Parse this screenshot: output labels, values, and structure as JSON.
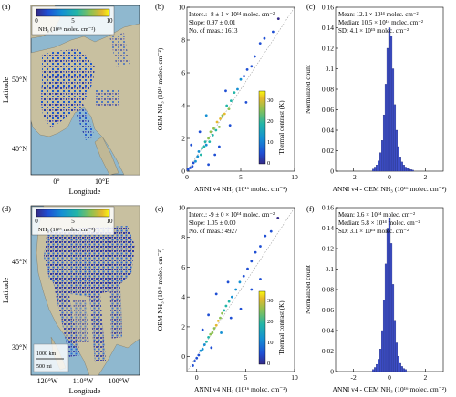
{
  "rows": [
    {
      "map": {
        "label": "(a)",
        "ylabel": "Latitude",
        "xlabel": "Longitude",
        "yticks": [
          "50°N",
          "40°N"
        ],
        "xticks": [
          "0°",
          "10°E"
        ],
        "colorbar_ticks": [
          "0",
          "5",
          "10"
        ],
        "colorbar_label": "NH₃ (10¹⁶ molec. cm⁻²)",
        "scalebar": []
      },
      "scatter": {
        "label": "(b)",
        "annotations": [
          "Interc.: -8 ± 1 × 10¹⁴ molec. cm⁻²",
          "Slope: 0.97 ± 0.01",
          "No. of meas.: 1613"
        ],
        "xlabel": "ANNI v4 NH₃ (10¹⁶ molec. cm⁻²)",
        "ylabel": "OEM NH₃ (10¹⁶ molec. cm⁻²)",
        "colorbar_label": "Thermal contrast (K)",
        "colorbar_ticks": [
          "0",
          "10",
          "20",
          "30"
        ]
      },
      "hist": {
        "label": "(c)",
        "annotations": [
          "Mean:  12.1 × 10¹⁴ molec. cm⁻²",
          "Median:  10.5 × 10¹⁴ molec. cm⁻²",
          "SD:  4.1 × 10¹⁵ molec. cm⁻²"
        ],
        "xlabel": "ANNI v4 - OEM NH₃ (10¹⁶ molec. cm⁻²)",
        "ylabel": "Normalized count"
      }
    },
    {
      "map": {
        "label": "(d)",
        "ylabel": "Latitude",
        "xlabel": "Longitude",
        "yticks": [
          "45°N",
          "30°N"
        ],
        "xticks": [
          "120°W",
          "110°W",
          "100°W"
        ],
        "colorbar_ticks": [
          "0",
          "5",
          "10"
        ],
        "colorbar_label": "NH₃ (10¹⁶ molec. cm⁻²)",
        "scalebar": [
          "1000 km",
          "500 mi"
        ]
      },
      "scatter": {
        "label": "(e)",
        "annotations": [
          "Interc.: -9 ± 0 × 10¹⁴ molec. cm⁻²",
          "Slope: 1.05 ± 0.00",
          "No. of meas.: 4927"
        ],
        "xlabel": "ANNI v4 NH₃ (10¹⁶ molec. cm⁻²)",
        "ylabel": "OEM NH₃ (10¹⁶ molec. cm⁻²)",
        "colorbar_label": "Thermal contrast (K)",
        "colorbar_ticks": [
          "0",
          "10",
          "20",
          "30"
        ]
      },
      "hist": {
        "label": "(f)",
        "annotations": [
          "Mean:  3.6 × 10¹⁴ molec. cm⁻²",
          "Median:  5.8 × 10¹⁴ molec. cm⁻²",
          "SD:  3.1 × 10¹⁵ molec. cm⁻²"
        ],
        "xlabel": "ANNI v4 - OEM NH₃ (10¹⁶ molec. cm⁻²)",
        "ylabel": "Normalized count"
      }
    }
  ],
  "chart_data": [
    {
      "panel": "(b)",
      "type": "scatter",
      "xlim": [
        0,
        10
      ],
      "ylim": [
        0,
        10
      ],
      "xticks": [
        0,
        5,
        10
      ],
      "yticks": [
        0,
        2,
        4,
        6,
        8,
        10
      ],
      "colorbar_range": [
        0,
        35
      ],
      "one_to_one_line": true,
      "grid": false,
      "points_approx": [
        [
          0.1,
          0.1,
          3
        ],
        [
          0.3,
          0.2,
          5
        ],
        [
          0.5,
          0.3,
          6
        ],
        [
          0.6,
          0.5,
          8
        ],
        [
          0.8,
          0.6,
          10
        ],
        [
          1.0,
          0.9,
          12
        ],
        [
          1.1,
          1.2,
          14
        ],
        [
          1.3,
          1.0,
          15
        ],
        [
          1.4,
          1.4,
          17
        ],
        [
          1.6,
          1.5,
          18
        ],
        [
          1.7,
          1.8,
          20
        ],
        [
          1.8,
          1.6,
          12
        ],
        [
          2.0,
          2.0,
          22
        ],
        [
          2.1,
          1.8,
          16
        ],
        [
          2.2,
          2.4,
          24
        ],
        [
          2.4,
          2.2,
          18
        ],
        [
          2.5,
          2.6,
          26
        ],
        [
          2.7,
          2.5,
          20
        ],
        [
          2.8,
          3.0,
          27
        ],
        [
          3.0,
          2.7,
          22
        ],
        [
          3.1,
          3.2,
          28
        ],
        [
          3.3,
          3.4,
          25
        ],
        [
          3.5,
          3.5,
          30
        ],
        [
          3.7,
          4.0,
          18
        ],
        [
          3.9,
          3.8,
          22
        ],
        [
          4.1,
          4.3,
          20
        ],
        [
          4.4,
          4.8,
          15
        ],
        [
          4.7,
          5.0,
          12
        ],
        [
          5.0,
          5.6,
          10
        ],
        [
          5.3,
          5.8,
          8
        ],
        [
          5.6,
          6.2,
          7
        ],
        [
          6.0,
          6.4,
          6
        ],
        [
          6.3,
          7.0,
          5
        ],
        [
          6.8,
          7.8,
          4
        ],
        [
          7.2,
          8.1,
          3
        ],
        [
          8.0,
          8.5,
          3
        ],
        [
          8.5,
          9.3,
          2
        ],
        [
          2.0,
          0.4,
          4
        ],
        [
          2.6,
          1.0,
          5
        ],
        [
          3.0,
          1.5,
          8
        ],
        [
          1.2,
          2.4,
          6
        ],
        [
          0.4,
          1.6,
          4
        ],
        [
          4.0,
          2.8,
          6
        ],
        [
          3.6,
          4.9,
          7
        ],
        [
          1.8,
          3.4,
          9
        ],
        [
          5.5,
          4.2,
          5
        ]
      ]
    },
    {
      "panel": "(c)",
      "type": "bar",
      "xlim": [
        -3,
        3
      ],
      "ylim": [
        0,
        0.16
      ],
      "xticks": [
        -2,
        0,
        2
      ],
      "yticks": [
        0,
        0.02,
        0.04,
        0.06,
        0.08,
        0.1,
        0.12,
        0.14,
        0.16
      ],
      "bin_centers": [
        -0.9,
        -0.8,
        -0.7,
        -0.6,
        -0.5,
        -0.4,
        -0.3,
        -0.2,
        -0.1,
        0.0,
        0.1,
        0.2,
        0.3,
        0.4,
        0.5,
        0.6,
        0.7,
        0.8,
        0.9,
        1.0,
        1.1,
        1.2,
        1.3
      ],
      "values": [
        0.002,
        0.004,
        0.006,
        0.01,
        0.018,
        0.03,
        0.055,
        0.085,
        0.12,
        0.14,
        0.132,
        0.1,
        0.065,
        0.04,
        0.024,
        0.014,
        0.009,
        0.006,
        0.004,
        0.003,
        0.002,
        0.0015,
        0.001
      ]
    },
    {
      "panel": "(e)",
      "type": "scatter",
      "xlim": [
        -1,
        10
      ],
      "ylim": [
        -1,
        10
      ],
      "xticks": [
        0,
        5,
        10
      ],
      "yticks": [
        0,
        2,
        4,
        6,
        8,
        10
      ],
      "colorbar_range": [
        0,
        35
      ],
      "one_to_one_line": true,
      "grid": false,
      "points_approx": [
        [
          -0.4,
          -0.6,
          3
        ],
        [
          -0.2,
          -0.3,
          5
        ],
        [
          0.0,
          -0.1,
          6
        ],
        [
          0.2,
          0.1,
          8
        ],
        [
          0.4,
          0.4,
          10
        ],
        [
          0.6,
          0.5,
          12
        ],
        [
          0.8,
          0.8,
          14
        ],
        [
          1.0,
          1.0,
          18
        ],
        [
          1.2,
          1.3,
          20
        ],
        [
          1.4,
          1.5,
          22
        ],
        [
          1.6,
          1.6,
          24
        ],
        [
          1.8,
          1.9,
          26
        ],
        [
          2.0,
          2.1,
          28
        ],
        [
          2.2,
          2.4,
          27
        ],
        [
          2.4,
          2.6,
          25
        ],
        [
          2.6,
          2.9,
          22
        ],
        [
          2.8,
          3.1,
          20
        ],
        [
          3.0,
          3.4,
          18
        ],
        [
          3.3,
          3.7,
          16
        ],
        [
          3.6,
          4.0,
          14
        ],
        [
          4.0,
          4.5,
          12
        ],
        [
          4.4,
          5.0,
          10
        ],
        [
          4.8,
          5.4,
          8
        ],
        [
          5.2,
          5.9,
          7
        ],
        [
          5.6,
          6.4,
          6
        ],
        [
          6.0,
          7.0,
          5
        ],
        [
          6.5,
          7.4,
          4
        ],
        [
          7.0,
          8.1,
          3
        ],
        [
          7.6,
          8.4,
          3
        ],
        [
          8.3,
          9.3,
          2
        ],
        [
          1.5,
          0.6,
          6
        ],
        [
          2.5,
          1.6,
          9
        ],
        [
          3.5,
          2.6,
          7
        ],
        [
          0.6,
          1.8,
          5
        ],
        [
          1.2,
          2.8,
          8
        ],
        [
          4.5,
          3.2,
          6
        ],
        [
          3.2,
          5.0,
          5
        ],
        [
          5.6,
          4.5,
          4
        ],
        [
          6.5,
          5.2,
          3
        ],
        [
          2.0,
          4.2,
          6
        ]
      ]
    },
    {
      "panel": "(f)",
      "type": "bar",
      "xlim": [
        -3,
        3
      ],
      "ylim": [
        0,
        0.16
      ],
      "xticks": [
        -2,
        0,
        2
      ],
      "yticks": [
        0,
        0.02,
        0.04,
        0.06,
        0.08,
        0.1,
        0.12,
        0.14,
        0.16
      ],
      "bin_centers": [
        -0.9,
        -0.8,
        -0.7,
        -0.6,
        -0.5,
        -0.4,
        -0.3,
        -0.2,
        -0.1,
        0.0,
        0.1,
        0.2,
        0.3,
        0.4,
        0.5,
        0.6,
        0.7,
        0.8,
        0.9
      ],
      "values": [
        0.002,
        0.004,
        0.007,
        0.012,
        0.022,
        0.04,
        0.07,
        0.105,
        0.14,
        0.15,
        0.125,
        0.085,
        0.05,
        0.028,
        0.015,
        0.008,
        0.005,
        0.003,
        0.002
      ]
    }
  ]
}
